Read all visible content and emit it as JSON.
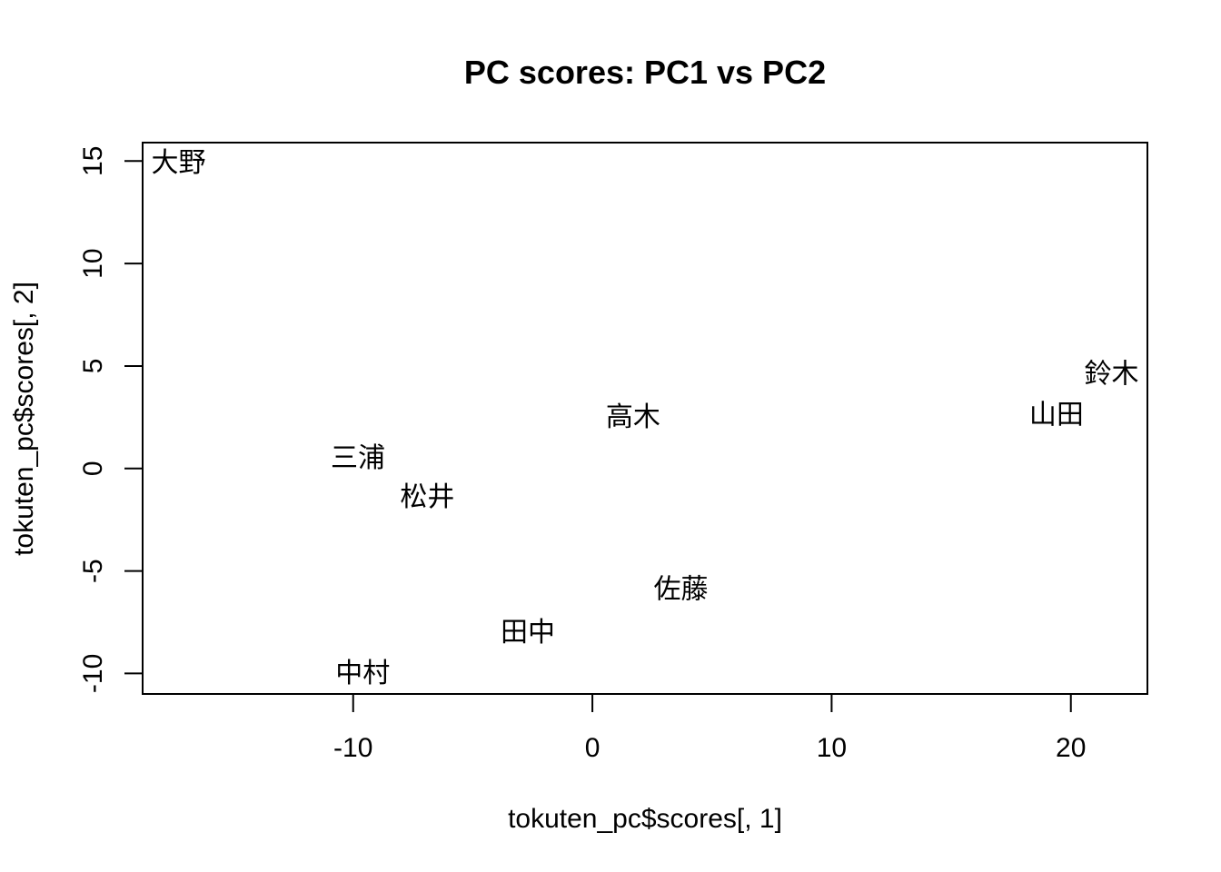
{
  "chart_data": {
    "type": "scatter",
    "title": "PC scores: PC1 vs PC2",
    "xlabel": "tokuten_pc$scores[, 1]",
    "ylabel": "tokuten_pc$scores[, 2]",
    "xlim": [
      -18.8,
      23.2
    ],
    "ylim": [
      -11.0,
      15.9
    ],
    "xticks": [
      -10,
      0,
      10,
      20
    ],
    "yticks": [
      -10,
      -5,
      0,
      5,
      10,
      15
    ],
    "xtick_labels": [
      "-10",
      "0",
      "10",
      "20"
    ],
    "ytick_labels": [
      "-10",
      "-5",
      "0",
      "5",
      "10",
      "15"
    ],
    "grid": false,
    "marker": "text",
    "points": [
      {
        "label": "大野",
        "x": -17.3,
        "y": 14.9
      },
      {
        "label": "鈴木",
        "x": 21.7,
        "y": 4.6
      },
      {
        "label": "山田",
        "x": 19.4,
        "y": 2.6
      },
      {
        "label": "高木",
        "x": 1.7,
        "y": 2.5
      },
      {
        "label": "三浦",
        "x": -9.8,
        "y": 0.5
      },
      {
        "label": "松井",
        "x": -6.9,
        "y": -1.4
      },
      {
        "label": "佐藤",
        "x": 3.7,
        "y": -5.9
      },
      {
        "label": "田中",
        "x": -2.7,
        "y": -8.0
      },
      {
        "label": "中村",
        "x": -9.6,
        "y": -10.0
      }
    ]
  }
}
